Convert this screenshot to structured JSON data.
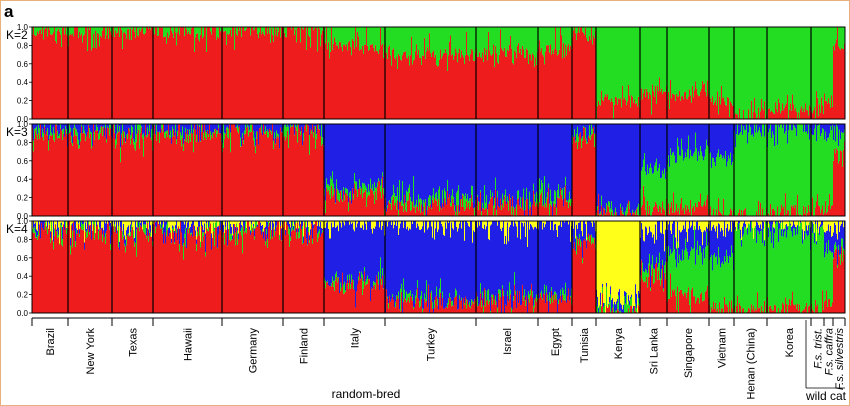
{
  "figure": {
    "panel_label": "a",
    "groups": [
      "random-bred",
      "wild cat"
    ]
  },
  "colors": {
    "cluster_red": "#ee1c1c",
    "cluster_green": "#22dd22",
    "cluster_blue": "#1f1fe6",
    "cluster_yellow": "#ffff1a",
    "frame": "#e8b07a"
  },
  "chart_data": {
    "type": "bar",
    "stacked": true,
    "description": "STRUCTURE admixture proportions per individual, grouped by population; values are approximate mean cluster memberships per population",
    "ylim": [
      0,
      1
    ],
    "yticks": [
      "0.0",
      "0.2",
      "0.4",
      "0.6",
      "0.8",
      "1.0"
    ],
    "categories": [
      "Brazil",
      "New York",
      "Texas",
      "Hawaii",
      "Germany",
      "Finland",
      "Italy",
      "Turkey",
      "Israel",
      "Egypt",
      "Tunisia",
      "Kenya",
      "Sri Lanka",
      "Singapore",
      "Vietnam",
      "Henan (China)",
      "Korea",
      "F.s. trist.",
      "F.s. caffra",
      "F.s. silvestris"
    ],
    "category_groups": [
      "random-bred",
      "random-bred",
      "random-bred",
      "random-bred",
      "random-bred",
      "random-bred",
      "random-bred",
      "random-bred",
      "random-bred",
      "random-bred",
      "random-bred",
      "random-bred",
      "random-bred",
      "random-bred",
      "random-bred",
      "random-bred",
      "random-bred",
      "wild cat",
      "wild cat",
      "wild cat"
    ],
    "panels": [
      {
        "k_label": "K=2",
        "series": [
          {
            "color_key": "cluster_red",
            "values": [
              0.95,
              0.95,
              0.93,
              0.95,
              0.96,
              0.96,
              0.78,
              0.7,
              0.72,
              0.75,
              0.92,
              0.2,
              0.3,
              0.25,
              0.2,
              0.05,
              0.12,
              0.1,
              0.2,
              0.8
            ]
          },
          {
            "color_key": "cluster_green",
            "values": [
              0.05,
              0.05,
              0.07,
              0.05,
              0.04,
              0.04,
              0.22,
              0.3,
              0.28,
              0.25,
              0.08,
              0.8,
              0.7,
              0.75,
              0.8,
              0.95,
              0.88,
              0.9,
              0.8,
              0.2
            ]
          }
        ]
      },
      {
        "k_label": "K=3",
        "series": [
          {
            "color_key": "cluster_red",
            "values": [
              0.9,
              0.9,
              0.88,
              0.9,
              0.92,
              0.92,
              0.25,
              0.12,
              0.15,
              0.15,
              0.85,
              0.02,
              0.1,
              0.1,
              0.05,
              0.02,
              0.05,
              0.05,
              0.1,
              0.7
            ]
          },
          {
            "color_key": "cluster_green",
            "values": [
              0.05,
              0.05,
              0.05,
              0.04,
              0.04,
              0.03,
              0.08,
              0.08,
              0.05,
              0.08,
              0.05,
              0.05,
              0.4,
              0.6,
              0.6,
              0.92,
              0.9,
              0.9,
              0.8,
              0.2
            ]
          },
          {
            "color_key": "cluster_blue",
            "values": [
              0.05,
              0.05,
              0.07,
              0.06,
              0.04,
              0.05,
              0.67,
              0.8,
              0.8,
              0.77,
              0.1,
              0.93,
              0.5,
              0.3,
              0.35,
              0.06,
              0.05,
              0.05,
              0.1,
              0.1
            ]
          }
        ]
      },
      {
        "k_label": "K=4",
        "series": [
          {
            "color_key": "cluster_red",
            "values": [
              0.9,
              0.9,
              0.88,
              0.9,
              0.92,
              0.92,
              0.3,
              0.12,
              0.15,
              0.15,
              0.8,
              0.02,
              0.4,
              0.2,
              0.05,
              0.02,
              0.05,
              0.05,
              0.1,
              0.6
            ]
          },
          {
            "color_key": "cluster_green",
            "values": [
              0.02,
              0.02,
              0.03,
              0.02,
              0.02,
              0.02,
              0.03,
              0.04,
              0.03,
              0.03,
              0.02,
              0.02,
              0.1,
              0.5,
              0.55,
              0.9,
              0.88,
              0.85,
              0.6,
              0.1
            ]
          },
          {
            "color_key": "cluster_blue",
            "values": [
              0.05,
              0.05,
              0.06,
              0.05,
              0.04,
              0.04,
              0.64,
              0.82,
              0.8,
              0.77,
              0.15,
              0.06,
              0.4,
              0.25,
              0.35,
              0.05,
              0.04,
              0.05,
              0.2,
              0.25
            ]
          },
          {
            "color_key": "cluster_yellow",
            "values": [
              0.03,
              0.03,
              0.03,
              0.03,
              0.02,
              0.02,
              0.03,
              0.02,
              0.02,
              0.05,
              0.03,
              0.9,
              0.1,
              0.05,
              0.05,
              0.03,
              0.03,
              0.05,
              0.1,
              0.05
            ]
          }
        ]
      }
    ]
  }
}
